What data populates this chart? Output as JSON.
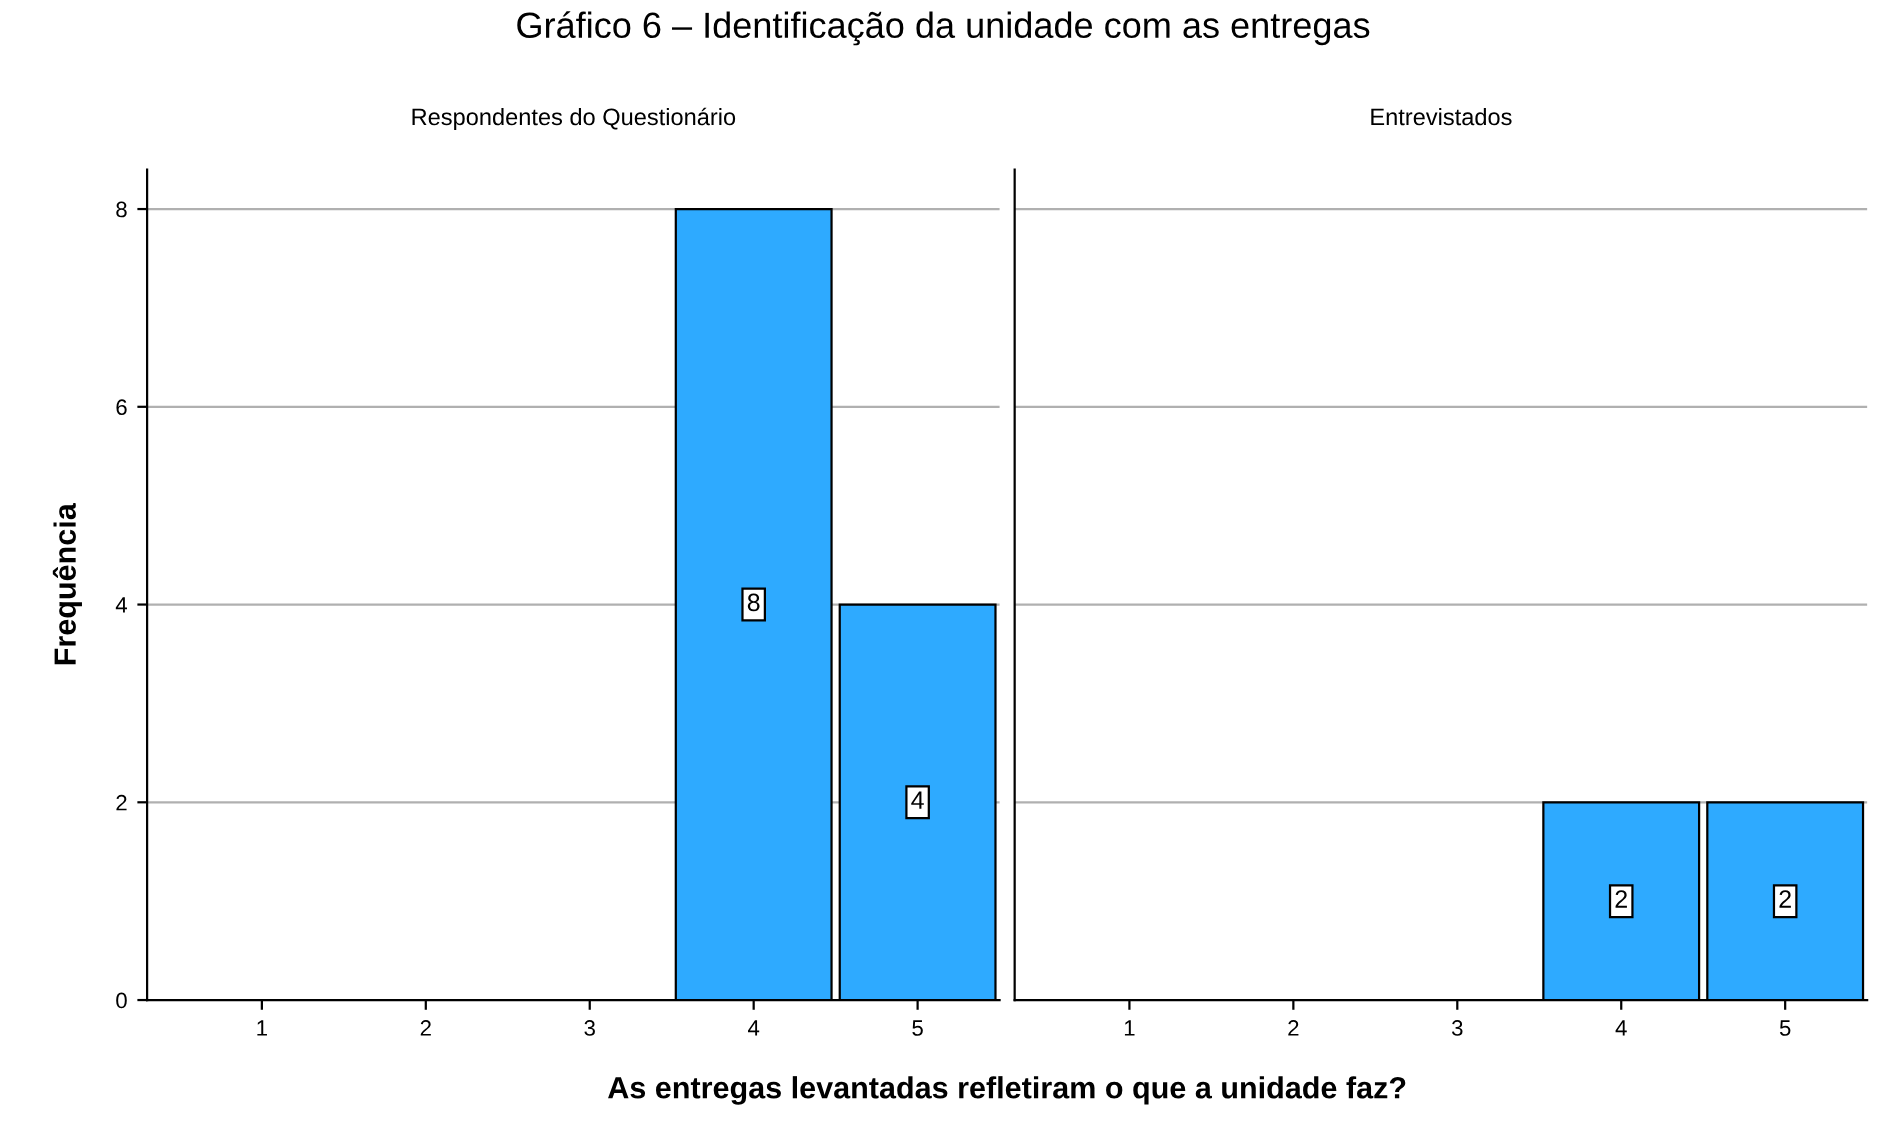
{
  "chart_data": [
    {
      "type": "bar",
      "title": "Respondentes do Questionário",
      "xlabel": "As entregas levantadas refletiram o que a unidade faz?",
      "ylabel": "Frequência",
      "annotations": [
        "Gráfico 6 – Identificação da unidade com as entregas"
      ],
      "categories": [
        "1",
        "2",
        "3",
        "4",
        "5"
      ],
      "series": [
        {
          "color": "#2eaaff",
          "values": [
            0,
            0,
            0,
            8,
            4
          ],
          "value_labels": [
            null,
            null,
            null,
            "8",
            "4"
          ]
        }
      ],
      "ylim": [
        0,
        8.4
      ],
      "yticks": [
        0,
        2,
        4,
        6,
        8
      ],
      "grid": "y"
    },
    {
      "type": "bar",
      "title": "Entrevistados",
      "categories": [
        "1",
        "2",
        "3",
        "4",
        "5"
      ],
      "series": [
        {
          "color": "#2eaaff",
          "values": [
            0,
            0,
            0,
            2,
            2
          ],
          "value_labels": [
            null,
            null,
            null,
            "2",
            "2"
          ]
        }
      ],
      "ylim": [
        0,
        8.4
      ],
      "yticks": [
        0,
        2,
        4,
        6,
        8
      ],
      "grid": "y",
      "tick_labels": "x"
    }
  ]
}
